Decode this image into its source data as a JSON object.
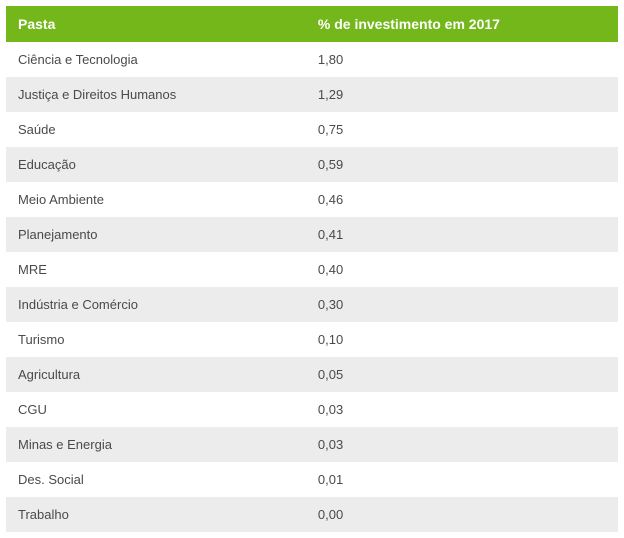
{
  "table": {
    "type": "table",
    "header_bg_color": "#74b71b",
    "header_text_color": "#ffffff",
    "header_fontsize": 14,
    "header_fontweight": "bold",
    "row_fontsize": 13,
    "row_text_color": "#4a4a4a",
    "row_bg_odd": "#ffffff",
    "row_bg_even": "#ececec",
    "cell_padding": "10px 12px",
    "column_widths": [
      "49%",
      "51%"
    ],
    "columns": [
      "Pasta",
      "% de investimento em 2017"
    ],
    "rows": [
      [
        "Ciência e Tecnologia",
        "1,80"
      ],
      [
        "Justiça e Direitos Humanos",
        "1,29"
      ],
      [
        "Saúde",
        "0,75"
      ],
      [
        "Educação",
        "0,59"
      ],
      [
        "Meio Ambiente",
        "0,46"
      ],
      [
        "Planejamento",
        "0,41"
      ],
      [
        "MRE",
        "0,40"
      ],
      [
        "Indústria e Comércio",
        "0,30"
      ],
      [
        "Turismo",
        "0,10"
      ],
      [
        "Agricultura",
        "0,05"
      ],
      [
        "CGU",
        "0,03"
      ],
      [
        "Minas e Energia",
        "0,03"
      ],
      [
        "Des. Social",
        "0,01"
      ],
      [
        "Trabalho",
        "0,00"
      ]
    ]
  }
}
